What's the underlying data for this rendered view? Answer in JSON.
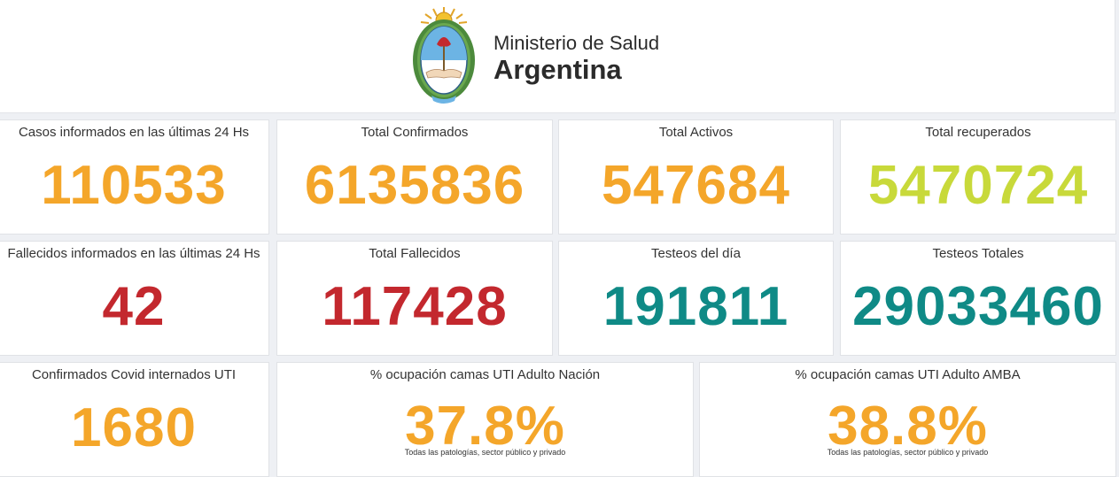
{
  "header": {
    "line1": "Ministerio de Salud",
    "line2": "Argentina",
    "emblem_icon": "argentina-coat-of-arms-icon"
  },
  "colors": {
    "orange": "#f4a62a",
    "lime": "#c8d93a",
    "red": "#c3282e",
    "teal": "#0f8a86"
  },
  "cards": {
    "casos24": {
      "title": "Casos informados en las últimas 24 Hs",
      "value": "110533"
    },
    "confirmados": {
      "title": "Total Confirmados",
      "value": "6135836"
    },
    "activos": {
      "title": "Total Activos",
      "value": "547684"
    },
    "recuperados": {
      "title": "Total recuperados",
      "value": "5470724"
    },
    "fallecidos24": {
      "title": "Fallecidos informados en las últimas 24 Hs",
      "value": "42"
    },
    "fallecidos": {
      "title": "Total Fallecidos",
      "value": "117428"
    },
    "testeos_dia": {
      "title": "Testeos del día",
      "value": "191811"
    },
    "testeos_totales": {
      "title": "Testeos Totales",
      "value": "29033460"
    },
    "uti": {
      "title": "Confirmados Covid internados UTI",
      "value": "1680"
    },
    "ocup_nacion": {
      "title": "% ocupación camas UTI Adulto Nación",
      "value": "37.8%",
      "note": "Todas las patologías, sector público y privado"
    },
    "ocup_amba": {
      "title": "% ocupación camas UTI Adulto AMBA",
      "value": "38.8%",
      "note": "Todas las patologías, sector público y privado"
    }
  }
}
